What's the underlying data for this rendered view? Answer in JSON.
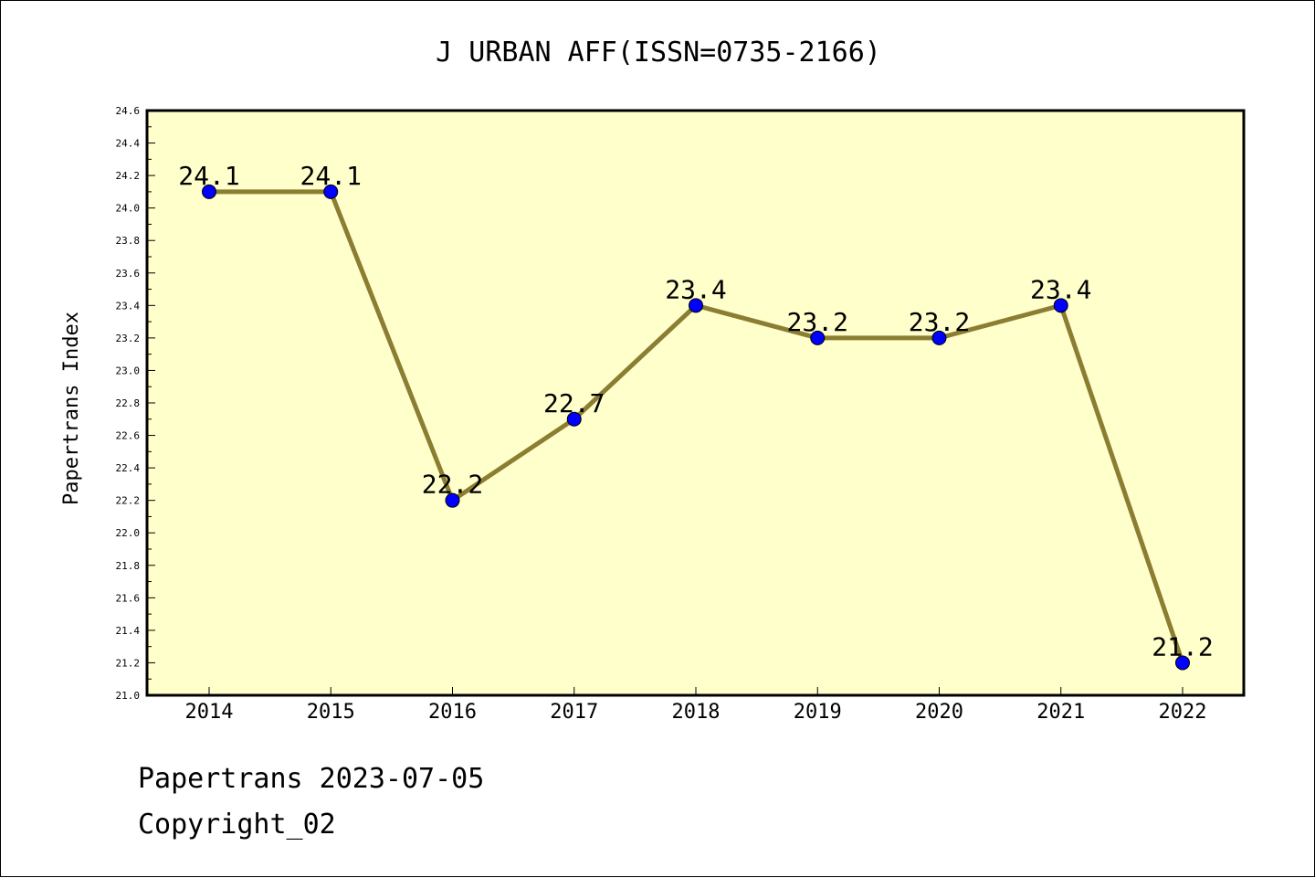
{
  "chart_data": {
    "type": "line",
    "title": "J URBAN AFF(ISSN=0735-2166)",
    "xlabel": "",
    "ylabel": "Papertrans Index",
    "categories": [
      "2014",
      "2015",
      "2016",
      "2017",
      "2018",
      "2019",
      "2020",
      "2021",
      "2022"
    ],
    "series": [
      {
        "values": [
          24.1,
          24.1,
          22.2,
          22.7,
          23.4,
          23.2,
          23.2,
          23.4,
          21.2
        ],
        "data_labels": [
          "24.1",
          "24.1",
          "22.2",
          "22.7",
          "23.4",
          "23.2",
          "23.2",
          "23.4",
          "21.2"
        ]
      }
    ],
    "ylim": [
      21.0,
      24.6
    ],
    "yticks": [
      "21.0",
      "21.2",
      "21.4",
      "21.6",
      "21.8",
      "22.0",
      "22.2",
      "22.4",
      "22.6",
      "22.8",
      "23.0",
      "23.2",
      "23.4",
      "23.6",
      "23.8",
      "24.0",
      "24.2",
      "24.4",
      "24.6"
    ],
    "grid": false,
    "legend": "none",
    "colors": {
      "plot_background": "#ffffcc",
      "line": "#8b7d32",
      "marker": "#0000ff",
      "axis": "#000000"
    }
  },
  "footer": {
    "date_line": "Papertrans 2023-07-05",
    "copyright": "Copyright_02"
  }
}
